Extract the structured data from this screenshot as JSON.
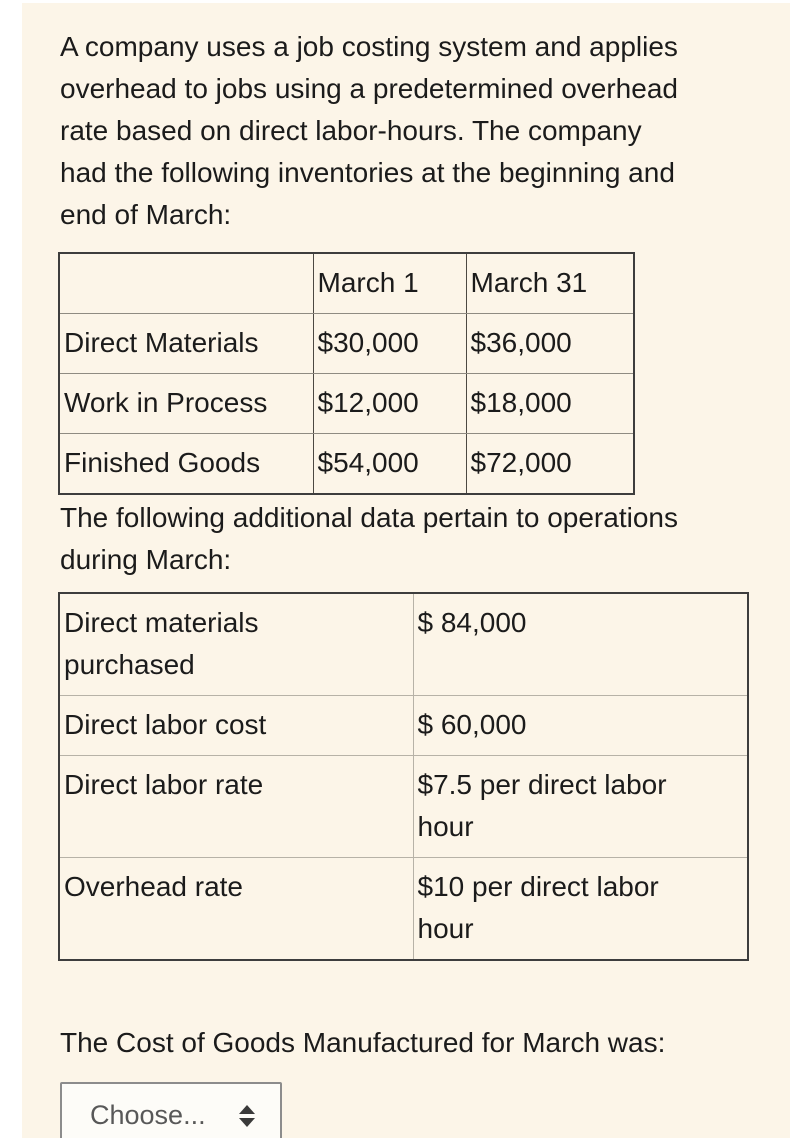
{
  "page": {
    "background_color": "#fcf5e8",
    "margin_color": "#ffffff",
    "text_color": "#1b1b1b"
  },
  "question": {
    "intro_lines": [
      "A company uses a job costing system and applies",
      "overhead to jobs using a predetermined overhead",
      "rate based on direct labor-hours. The company",
      "had the following inventories at the beginning and",
      "end of March:"
    ],
    "inventory_table": {
      "column_headers": [
        "",
        "March 1",
        "March 31"
      ],
      "rows": [
        {
          "label": "Direct Materials",
          "march_1": "$30,000",
          "march_31": "$36,000"
        },
        {
          "label": "Work in Process",
          "march_1": "$12,000",
          "march_31": "$18,000"
        },
        {
          "label": "Finished Goods",
          "march_1": "$54,000",
          "march_31": "$72,000"
        }
      ]
    },
    "additional_intro_lines": [
      "The following additional data pertain to operations",
      "during March:"
    ],
    "additional_table": {
      "rows": [
        {
          "label": "Direct materials purchased",
          "value": "$ 84,000"
        },
        {
          "label": "Direct labor cost",
          "value": "$ 60,000"
        },
        {
          "label": "Direct labor rate",
          "value": "$7.5 per direct labor hour"
        },
        {
          "label": "Overhead rate",
          "value": "$10 per direct labor hour"
        }
      ]
    },
    "prompt": "The Cost of Goods Manufactured for March was:",
    "answer_dropdown": {
      "selected_value": "Choose...",
      "icon": "up-down-arrows"
    }
  }
}
